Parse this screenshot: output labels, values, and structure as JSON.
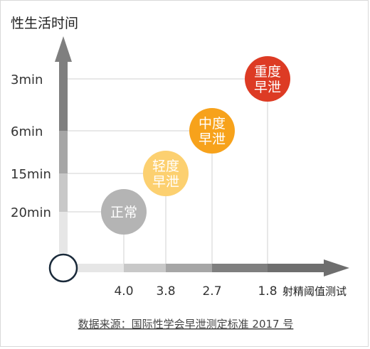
{
  "chart_data": {
    "type": "scatter",
    "title": "",
    "ylabel": "性生活时间",
    "xlabel": "射精阈值测试",
    "y_ticks": [
      "3min",
      "6min",
      "15min",
      "20min"
    ],
    "x_ticks": [
      "4.0",
      "3.8",
      "2.7",
      "1.8"
    ],
    "points": [
      {
        "x": "4.0",
        "y": "20min",
        "lines": [
          "正常"
        ],
        "color": "#b4b4b4"
      },
      {
        "x": "3.8",
        "y": "15min",
        "lines": [
          "轻度",
          "早泄"
        ],
        "color": "#fcd070"
      },
      {
        "x": "2.7",
        "y": "6min",
        "lines": [
          "中度",
          "早泄"
        ],
        "color": "#f7a21b"
      },
      {
        "x": "1.8",
        "y": "3min",
        "lines": [
          "重度",
          "早泄"
        ],
        "color": "#dd3b24"
      }
    ],
    "grid": true
  },
  "source": "数据来源：国际性学会早泄测定标准 2017 号",
  "colors": {
    "axis_dark": "#7f7f7f",
    "axis_mid": "#a6a6a6",
    "axis_light": "#c8c8c8",
    "axis_lightest": "#e6e6e6",
    "grid": "#d0d0d0",
    "origin_stroke": "#1a2a3a"
  }
}
